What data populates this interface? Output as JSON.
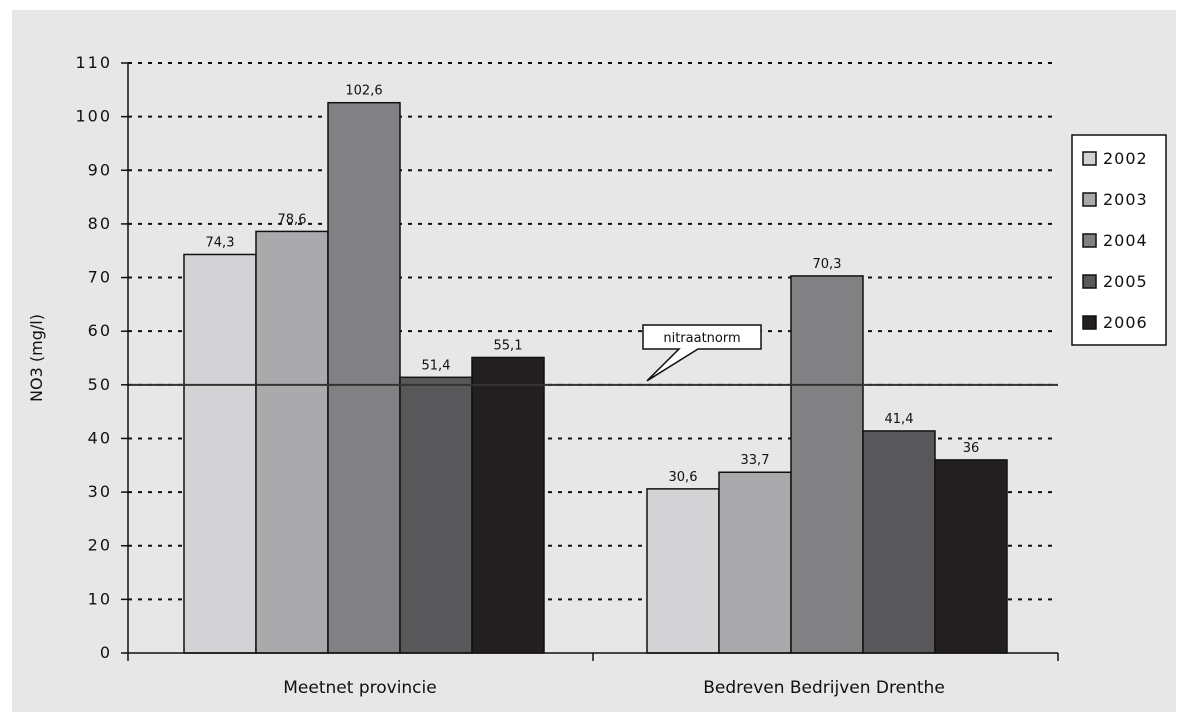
{
  "chart_data": {
    "type": "bar",
    "categories": [
      "Meetnet provincie",
      "Bedreven Bedrijven Drenthe"
    ],
    "series": [
      {
        "name": "2002",
        "color": "#d3d3d5",
        "values": [
          74.3,
          30.6
        ],
        "labels": [
          "74,3",
          "30,6"
        ]
      },
      {
        "name": "2003",
        "color": "#aaaaad",
        "values": [
          78.6,
          33.7
        ],
        "labels": [
          "78,6",
          "33,7"
        ]
      },
      {
        "name": "2004",
        "color": "#818184",
        "values": [
          102.6,
          70.3
        ],
        "labels": [
          "102,6",
          "70,3"
        ]
      },
      {
        "name": "2005",
        "color": "#58585b",
        "values": [
          51.4,
          41.4
        ],
        "labels": [
          "51,4",
          "41,4"
        ]
      },
      {
        "name": "2006",
        "color": "#231f20",
        "values": [
          55.1,
          36
        ],
        "labels": [
          "55,1",
          "36"
        ]
      }
    ],
    "ylabel": "NO3 (mg/l)",
    "ylim": [
      0,
      110
    ],
    "yticks": [
      0,
      10,
      20,
      30,
      40,
      50,
      60,
      70,
      80,
      90,
      100,
      110
    ],
    "grid": "dotted-horizontal",
    "legend_position": "right",
    "reference_line": {
      "value": 50,
      "label": "nitraatnorm"
    }
  }
}
